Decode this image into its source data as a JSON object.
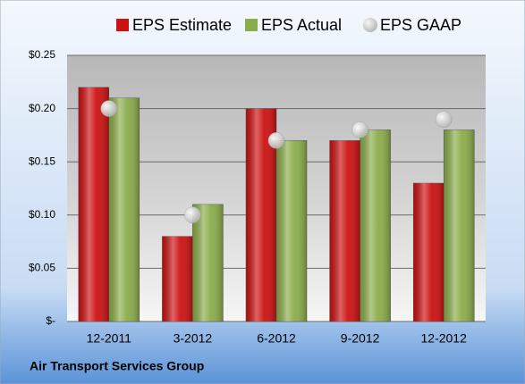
{
  "chart_data": {
    "type": "bar",
    "categories": [
      "12-2011",
      "3-2012",
      "6-2012",
      "9-2012",
      "12-2012"
    ],
    "series": [
      {
        "name": "EPS Estimate",
        "color": "#cc1111",
        "type": "bar",
        "values": [
          0.22,
          0.08,
          0.2,
          0.17,
          0.13
        ]
      },
      {
        "name": "EPS Actual",
        "color": "#8aac4a",
        "type": "bar",
        "values": [
          0.21,
          0.11,
          0.17,
          0.18,
          0.18
        ]
      },
      {
        "name": "EPS GAAP",
        "color": "#b4b4b4",
        "type": "scatter",
        "values": [
          0.2,
          0.1,
          0.17,
          0.18,
          0.19
        ]
      }
    ],
    "ylim": [
      0,
      0.25
    ],
    "yticks": [
      {
        "value": 0,
        "label": "$-"
      },
      {
        "value": 0.05,
        "label": "$0.05"
      },
      {
        "value": 0.1,
        "label": "$0.10"
      },
      {
        "value": 0.15,
        "label": "$0.15"
      },
      {
        "value": 0.2,
        "label": "$0.20"
      },
      {
        "value": 0.25,
        "label": "$0.25"
      }
    ],
    "grid": true,
    "legend": "top",
    "footer": "Air Transport Services Group"
  }
}
